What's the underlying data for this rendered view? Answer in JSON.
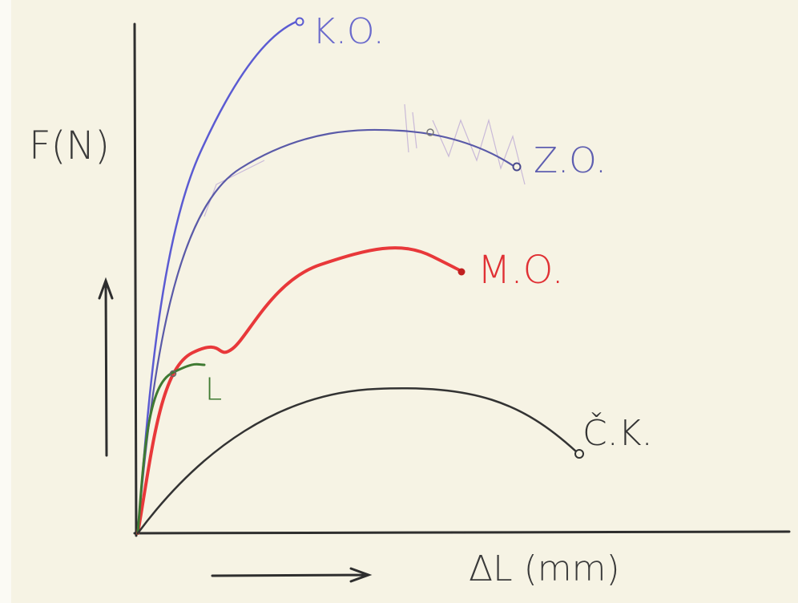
{
  "axes": {
    "y_label": "F(N)",
    "x_label": "ΔL (mm)"
  },
  "curves": [
    {
      "label": "K.O."
    },
    {
      "label": "Z.O."
    },
    {
      "label": "M.O."
    },
    {
      "label": "L"
    },
    {
      "label": "Č.K."
    }
  ]
}
